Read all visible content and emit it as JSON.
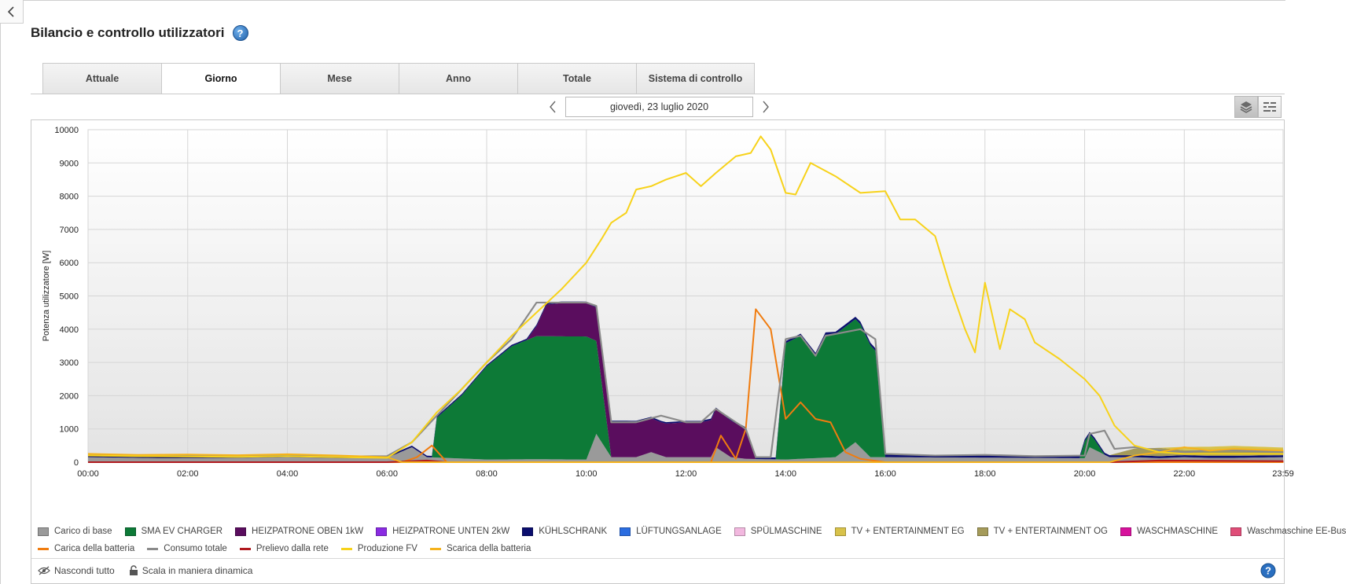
{
  "header": {
    "title": "Bilancio e controllo utilizzatori",
    "help": "?"
  },
  "tabs": [
    {
      "label": "Attuale"
    },
    {
      "label": "Giorno"
    },
    {
      "label": "Mese"
    },
    {
      "label": "Anno"
    },
    {
      "label": "Totale"
    },
    {
      "label": "Sistema di controllo"
    }
  ],
  "active_tab": "Giorno",
  "date_nav": {
    "date": "giovedì, 23 luglio 2020"
  },
  "footer": {
    "hide_all": "Nascondi tutto",
    "dynamic_scale": "Scala in maniera dinamica"
  },
  "colors": {
    "base": "#9a9a9a",
    "ev": "#0d7a37",
    "oben": "#5a0d5e",
    "unten": "#8a2be2",
    "kuehl": "#0b0e6e",
    "lueft": "#2b6de0",
    "spuel": "#f2b8df",
    "tv_eg": "#d8c24a",
    "tv_og": "#a59b5a",
    "wasch": "#d7119c",
    "wasch_bus": "#e04d78",
    "bat_charge": "#f07c0f",
    "consumption": "#8a8a8a",
    "grid": "#b0191e",
    "pv": "#f7d21a",
    "bat_discharge": "#f5b21c"
  },
  "chart_data": {
    "type": "area",
    "ylabel": "Potenza utilizzatore [W]",
    "ylim": [
      0,
      10000
    ],
    "yticks": [
      "0",
      "1000",
      "2000",
      "3000",
      "4000",
      "5000",
      "6000",
      "7000",
      "8000",
      "9000",
      "10000"
    ],
    "xlim": [
      "00:00",
      "23:59"
    ],
    "xticks": [
      "00:00",
      "02:00",
      "04:00",
      "06:00",
      "08:00",
      "10:00",
      "12:00",
      "14:00",
      "16:00",
      "18:00",
      "20:00",
      "22:00",
      "23:59"
    ],
    "grid": true,
    "legend_position": "bottom",
    "legend": [
      {
        "name": "Carico di base",
        "kind": "area",
        "color": "#9a9a9a"
      },
      {
        "name": "SMA EV CHARGER",
        "kind": "area",
        "color": "#0d7a37"
      },
      {
        "name": "HEIZPATRONE OBEN 1kW",
        "kind": "area",
        "color": "#5a0d5e"
      },
      {
        "name": "HEIZPATRONE UNTEN 2kW",
        "kind": "area",
        "color": "#8a2be2"
      },
      {
        "name": "KÜHLSCHRANK",
        "kind": "area",
        "color": "#0b0e6e"
      },
      {
        "name": "LÜFTUNGSANLAGE",
        "kind": "area",
        "color": "#2b6de0"
      },
      {
        "name": "SPÜLMASCHINE",
        "kind": "area",
        "color": "#f2b8df"
      },
      {
        "name": "TV + ENTERTAINMENT EG",
        "kind": "area",
        "color": "#d8c24a"
      },
      {
        "name": "TV + ENTERTAINMENT OG",
        "kind": "area",
        "color": "#a59b5a"
      },
      {
        "name": "WASCHMASCHINE",
        "kind": "area",
        "color": "#d7119c"
      },
      {
        "name": "Waschmaschine EE-Bus",
        "kind": "area",
        "color": "#e04d78"
      },
      {
        "name": "Carica della batteria",
        "kind": "line",
        "color": "#f07c0f"
      },
      {
        "name": "Consumo totale",
        "kind": "line",
        "color": "#8a8a8a"
      },
      {
        "name": "Prelievo dalla rete",
        "kind": "line",
        "color": "#b0191e"
      },
      {
        "name": "Produzione FV",
        "kind": "line",
        "color": "#f7d21a"
      },
      {
        "name": "Scarica della batteria",
        "kind": "line",
        "color": "#f5b21c"
      }
    ],
    "stacked_areas": [
      {
        "name": "Carico di base",
        "points": [
          [
            0,
            150
          ],
          [
            1.5,
            120
          ],
          [
            3,
            130
          ],
          [
            4,
            150
          ],
          [
            5,
            120
          ],
          [
            6,
            130
          ],
          [
            6.5,
            450
          ],
          [
            6.8,
            150
          ],
          [
            8,
            80
          ],
          [
            9,
            90
          ],
          [
            10,
            80
          ],
          [
            10.2,
            850
          ],
          [
            10.5,
            150
          ],
          [
            11,
            150
          ],
          [
            11.3,
            300
          ],
          [
            11.6,
            150
          ],
          [
            12,
            150
          ],
          [
            12.5,
            150
          ],
          [
            12.6,
            450
          ],
          [
            12.9,
            150
          ],
          [
            13.2,
            100
          ],
          [
            14,
            80
          ],
          [
            15,
            150
          ],
          [
            15.4,
            600
          ],
          [
            15.7,
            150
          ],
          [
            16,
            150
          ],
          [
            19,
            130
          ],
          [
            20,
            120
          ],
          [
            20.1,
            450
          ],
          [
            20.5,
            150
          ],
          [
            21,
            150
          ],
          [
            21.5,
            120
          ],
          [
            22,
            150
          ],
          [
            22.5,
            130
          ],
          [
            23,
            130
          ],
          [
            23.99,
            150
          ]
        ]
      },
      {
        "name": "SMA EV CHARGER",
        "points": [
          [
            0,
            0
          ],
          [
            6.9,
            0
          ],
          [
            7,
            1200
          ],
          [
            7.5,
            1900
          ],
          [
            8,
            2800
          ],
          [
            8.5,
            3400
          ],
          [
            9,
            3700
          ],
          [
            10,
            3700
          ],
          [
            10.2,
            2800
          ],
          [
            10.5,
            0
          ],
          [
            13.8,
            0
          ],
          [
            14,
            3500
          ],
          [
            14.3,
            3700
          ],
          [
            14.6,
            3100
          ],
          [
            14.8,
            3700
          ],
          [
            15.5,
            3700
          ],
          [
            15.8,
            3200
          ],
          [
            16,
            0
          ],
          [
            19.9,
            0
          ],
          [
            20,
            500
          ],
          [
            20.2,
            300
          ],
          [
            20.4,
            0
          ],
          [
            23.99,
            0
          ]
        ]
      },
      {
        "name": "HEIZPATRONE OBEN 1kW",
        "points": [
          [
            0,
            0
          ],
          [
            8.8,
            0
          ],
          [
            9,
            300
          ],
          [
            9.2,
            950
          ],
          [
            9.5,
            1000
          ],
          [
            10,
            1000
          ],
          [
            10.3,
            1000
          ],
          [
            10.5,
            1050
          ],
          [
            11,
            1050
          ],
          [
            11.5,
            1000
          ],
          [
            12,
            1050
          ],
          [
            12.3,
            1050
          ],
          [
            12.6,
            1150
          ],
          [
            12.9,
            1100
          ],
          [
            13.2,
            900
          ],
          [
            13.4,
            0
          ],
          [
            23.99,
            0
          ]
        ]
      },
      {
        "name": "KÜHLSCHRANK",
        "points": [
          [
            0,
            60
          ],
          [
            2,
            50
          ],
          [
            4,
            60
          ],
          [
            6,
            50
          ],
          [
            8,
            40
          ],
          [
            10,
            50
          ],
          [
            12,
            40
          ],
          [
            13.5,
            50
          ],
          [
            14,
            60
          ],
          [
            16,
            80
          ],
          [
            18,
            70
          ],
          [
            20,
            60
          ],
          [
            22,
            60
          ],
          [
            23.99,
            60
          ]
        ]
      },
      {
        "name": "TV + ENTERTAINMENT OG",
        "points": [
          [
            0,
            0
          ],
          [
            20.5,
            0
          ],
          [
            21,
            200
          ],
          [
            21.5,
            250
          ],
          [
            22,
            150
          ],
          [
            23,
            200
          ],
          [
            23.99,
            150
          ]
        ]
      },
      {
        "name": "TV + ENTERTAINMENT EG",
        "points": [
          [
            0,
            0
          ],
          [
            21.5,
            0
          ],
          [
            22,
            100
          ],
          [
            23,
            100
          ],
          [
            23.99,
            80
          ]
        ]
      }
    ],
    "lines": [
      {
        "name": "Produzione FV",
        "points": [
          [
            0,
            200
          ],
          [
            1,
            180
          ],
          [
            2,
            170
          ],
          [
            3,
            160
          ],
          [
            4,
            180
          ],
          [
            5,
            150
          ],
          [
            6,
            130
          ],
          [
            6.5,
            600
          ],
          [
            7,
            1500
          ],
          [
            7.5,
            2200
          ],
          [
            8,
            3000
          ],
          [
            8.5,
            3800
          ],
          [
            9,
            4500
          ],
          [
            9.5,
            5200
          ],
          [
            10,
            6000
          ],
          [
            10.3,
            6700
          ],
          [
            10.5,
            7200
          ],
          [
            10.8,
            7500
          ],
          [
            11,
            8200
          ],
          [
            11.3,
            8300
          ],
          [
            11.6,
            8500
          ],
          [
            12,
            8700
          ],
          [
            12.3,
            8300
          ],
          [
            12.6,
            8700
          ],
          [
            13,
            9200
          ],
          [
            13.3,
            9300
          ],
          [
            13.5,
            9800
          ],
          [
            13.7,
            9400
          ],
          [
            14,
            8100
          ],
          [
            14.2,
            8050
          ],
          [
            14.5,
            9000
          ],
          [
            15,
            8600
          ],
          [
            15.5,
            8100
          ],
          [
            16,
            8150
          ],
          [
            16.3,
            7300
          ],
          [
            16.6,
            7300
          ],
          [
            17,
            6800
          ],
          [
            17.3,
            5300
          ],
          [
            17.6,
            4000
          ],
          [
            17.8,
            3300
          ],
          [
            18,
            5400
          ],
          [
            18.3,
            3400
          ],
          [
            18.5,
            4600
          ],
          [
            18.8,
            4300
          ],
          [
            19,
            3600
          ],
          [
            19.5,
            3100
          ],
          [
            20,
            2500
          ],
          [
            20.3,
            2000
          ],
          [
            20.6,
            1100
          ],
          [
            21,
            500
          ],
          [
            21.5,
            300
          ],
          [
            22,
            250
          ],
          [
            23,
            250
          ],
          [
            23.99,
            250
          ]
        ]
      },
      {
        "name": "Consumo totale",
        "points": [
          [
            0,
            210
          ],
          [
            1,
            180
          ],
          [
            2,
            190
          ],
          [
            3,
            170
          ],
          [
            4,
            200
          ],
          [
            5,
            170
          ],
          [
            6,
            180
          ],
          [
            6.5,
            600
          ],
          [
            7,
            1400
          ],
          [
            7.5,
            2200
          ],
          [
            8,
            3000
          ],
          [
            8.5,
            3700
          ],
          [
            9,
            4800
          ],
          [
            10,
            4800
          ],
          [
            10.2,
            4700
          ],
          [
            10.5,
            1200
          ],
          [
            11,
            1200
          ],
          [
            11.5,
            1400
          ],
          [
            12,
            1200
          ],
          [
            12.3,
            1200
          ],
          [
            12.6,
            1600
          ],
          [
            12.9,
            1300
          ],
          [
            13.2,
            1000
          ],
          [
            13.4,
            150
          ],
          [
            13.7,
            150
          ],
          [
            14,
            3700
          ],
          [
            14.3,
            3800
          ],
          [
            14.6,
            3200
          ],
          [
            14.8,
            3800
          ],
          [
            15.5,
            4000
          ],
          [
            15.8,
            3700
          ],
          [
            16,
            250
          ],
          [
            17,
            200
          ],
          [
            18,
            220
          ],
          [
            19,
            180
          ],
          [
            20,
            200
          ],
          [
            20.1,
            850
          ],
          [
            20.4,
            950
          ],
          [
            20.6,
            400
          ],
          [
            21,
            450
          ],
          [
            21.5,
            350
          ],
          [
            22,
            300
          ],
          [
            22.5,
            350
          ],
          [
            23,
            350
          ],
          [
            23.99,
            300
          ]
        ]
      },
      {
        "name": "Carica della batteria",
        "points": [
          [
            0,
            0
          ],
          [
            6.3,
            0
          ],
          [
            6.6,
            150
          ],
          [
            6.9,
            500
          ],
          [
            7.2,
            0
          ],
          [
            8,
            0
          ],
          [
            12.5,
            0
          ],
          [
            12.7,
            800
          ],
          [
            13,
            100
          ],
          [
            13.2,
            1000
          ],
          [
            13.4,
            4600
          ],
          [
            13.7,
            4000
          ],
          [
            14,
            1300
          ],
          [
            14.3,
            1800
          ],
          [
            14.6,
            1300
          ],
          [
            14.9,
            1200
          ],
          [
            15.2,
            300
          ],
          [
            15.5,
            100
          ],
          [
            16,
            0
          ],
          [
            23.99,
            0
          ]
        ]
      },
      {
        "name": "Scarica della batteria",
        "points": [
          [
            0,
            250
          ],
          [
            1,
            220
          ],
          [
            2,
            230
          ],
          [
            3,
            210
          ],
          [
            4,
            240
          ],
          [
            5,
            200
          ],
          [
            6,
            150
          ],
          [
            6.3,
            0
          ],
          [
            20.5,
            0
          ],
          [
            21,
            200
          ],
          [
            21.5,
            300
          ],
          [
            22,
            450
          ],
          [
            22.5,
            350
          ],
          [
            23,
            400
          ],
          [
            23.99,
            350
          ]
        ]
      },
      {
        "name": "Prelievo dalla rete",
        "points": [
          [
            0,
            0
          ],
          [
            6,
            0
          ],
          [
            6.8,
            50
          ],
          [
            7.2,
            0
          ],
          [
            20.5,
            0
          ],
          [
            21.5,
            50
          ],
          [
            23.99,
            30
          ]
        ]
      }
    ]
  }
}
